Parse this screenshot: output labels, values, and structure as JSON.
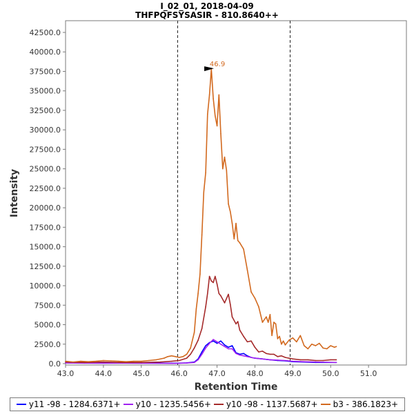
{
  "chart_data": {
    "type": "line",
    "title": "I_02_01, 2018-04-09",
    "subtitle": "THFPQFSYSASIR - 810.8640++",
    "xlabel": "Retention Time",
    "ylabel": "Intensity",
    "xlim": [
      43.0,
      52.0
    ],
    "ylim": [
      0,
      43500
    ],
    "xticks": [
      "43.0",
      "44.0",
      "45.0",
      "46.0",
      "47.0",
      "48.0",
      "49.0",
      "50.0",
      "51.0"
    ],
    "xtick_values": [
      43,
      44,
      45,
      46,
      47,
      48,
      49,
      50,
      51
    ],
    "yticks": [
      "0.0",
      "2500.0",
      "5000.0",
      "7500.0",
      "10000.0",
      "12500.0",
      "15000.0",
      "17500.0",
      "20000.0",
      "22500.0",
      "25000.0",
      "27500.0",
      "30000.0",
      "32500.0",
      "35000.0",
      "37500.0",
      "40000.0",
      "42500.0"
    ],
    "ytick_values": [
      0,
      2500,
      5000,
      7500,
      10000,
      12500,
      15000,
      17500,
      20000,
      22500,
      25000,
      27500,
      30000,
      32500,
      35000,
      37500,
      40000,
      42500
    ],
    "boundaries": [
      45.96,
      48.93
    ],
    "peak_annotation": {
      "label": "46.9",
      "x": 46.9,
      "y": 37800,
      "color": "#d2691e"
    },
    "legend_position": "bottom",
    "series": [
      {
        "name": "y11 -98 - 1284.6371+",
        "color": "#0000ff",
        "x": [
          43.0,
          43.5,
          44.0,
          44.5,
          45.0,
          45.5,
          45.8,
          46.0,
          46.2,
          46.4,
          46.5,
          46.6,
          46.7,
          46.8,
          46.9,
          47.0,
          47.1,
          47.2,
          47.3,
          47.4,
          47.5,
          47.6,
          47.7,
          47.8,
          47.9,
          48.0,
          48.2,
          48.4,
          48.6,
          48.8,
          49.0,
          49.3,
          49.6,
          49.9,
          50.15
        ],
        "y": [
          150,
          100,
          80,
          90,
          70,
          60,
          50,
          60,
          100,
          200,
          600,
          1500,
          2300,
          2700,
          2900,
          2600,
          2900,
          2400,
          2100,
          2300,
          1400,
          1200,
          1300,
          1000,
          800,
          700,
          600,
          500,
          400,
          350,
          250,
          200,
          150,
          150,
          150
        ]
      },
      {
        "name": "y10 - 1235.5456+",
        "color": "#a020f0",
        "x": [
          43.0,
          43.5,
          44.0,
          44.5,
          45.0,
          45.5,
          45.8,
          46.0,
          46.2,
          46.4,
          46.5,
          46.6,
          46.7,
          46.8,
          46.9,
          47.0,
          47.1,
          47.2,
          47.3,
          47.4,
          47.5,
          47.6,
          47.7,
          47.8,
          47.9,
          48.0,
          48.2,
          48.4,
          48.6,
          48.8,
          49.0,
          49.3,
          49.6,
          49.9,
          50.15
        ],
        "y": [
          80,
          60,
          50,
          60,
          40,
          40,
          30,
          40,
          80,
          150,
          500,
          1200,
          2000,
          2600,
          3100,
          2800,
          2500,
          2200,
          1900,
          1900,
          1300,
          1100,
          1000,
          900,
          800,
          700,
          600,
          500,
          450,
          400,
          300,
          250,
          200,
          180,
          150
        ]
      },
      {
        "name": "y10 -98 - 1137.5687+",
        "color": "#a52a2a",
        "x": [
          43.0,
          43.5,
          44.0,
          44.5,
          45.0,
          45.5,
          45.8,
          46.0,
          46.2,
          46.3,
          46.4,
          46.5,
          46.6,
          46.7,
          46.75,
          46.8,
          46.85,
          46.9,
          46.95,
          47.0,
          47.05,
          47.1,
          47.2,
          47.3,
          47.35,
          47.4,
          47.5,
          47.55,
          47.6,
          47.7,
          47.8,
          47.9,
          48.0,
          48.1,
          48.2,
          48.3,
          48.4,
          48.5,
          48.6,
          48.7,
          48.8,
          48.9,
          49.0,
          49.2,
          49.4,
          49.6,
          49.8,
          50.0,
          50.15
        ],
        "y": [
          200,
          150,
          200,
          150,
          150,
          200,
          300,
          400,
          700,
          1200,
          2000,
          3000,
          4500,
          7300,
          9000,
          11200,
          10600,
          10400,
          11200,
          10200,
          9000,
          8700,
          7800,
          8900,
          7600,
          6000,
          5100,
          5400,
          4300,
          3500,
          2800,
          2900,
          2100,
          1500,
          1600,
          1300,
          1200,
          1200,
          900,
          1000,
          800,
          700,
          600,
          500,
          500,
          400,
          400,
          500,
          500
        ]
      },
      {
        "name": "b3 - 386.1823+",
        "color": "#d2691e",
        "x": [
          43.0,
          43.2,
          43.4,
          43.6,
          43.8,
          44.0,
          44.2,
          44.4,
          44.6,
          44.8,
          45.0,
          45.2,
          45.4,
          45.6,
          45.7,
          45.8,
          45.9,
          46.0,
          46.1,
          46.2,
          46.3,
          46.4,
          46.45,
          46.5,
          46.55,
          46.6,
          46.65,
          46.7,
          46.75,
          46.8,
          46.85,
          46.9,
          46.95,
          47.0,
          47.05,
          47.1,
          47.15,
          47.2,
          47.25,
          47.3,
          47.35,
          47.4,
          47.45,
          47.5,
          47.55,
          47.6,
          47.7,
          47.8,
          47.9,
          48.0,
          48.1,
          48.2,
          48.3,
          48.35,
          48.4,
          48.45,
          48.5,
          48.55,
          48.6,
          48.65,
          48.7,
          48.75,
          48.8,
          48.9,
          49.0,
          49.1,
          49.2,
          49.3,
          49.4,
          49.5,
          49.6,
          49.7,
          49.8,
          49.9,
          50.0,
          50.1,
          50.15
        ],
        "y": [
          300,
          200,
          300,
          250,
          300,
          400,
          350,
          300,
          250,
          300,
          300,
          400,
          500,
          700,
          900,
          1000,
          900,
          800,
          900,
          1200,
          2000,
          4000,
          7000,
          9000,
          11500,
          16500,
          22000,
          24500,
          32000,
          34500,
          37800,
          34000,
          31800,
          30500,
          34500,
          29500,
          25000,
          26500,
          24800,
          20500,
          19500,
          18000,
          16000,
          18000,
          15800,
          15500,
          14700,
          12000,
          9200,
          8400,
          7300,
          5300,
          6000,
          5300,
          6300,
          3600,
          5300,
          5100,
          3200,
          3500,
          2500,
          2900,
          2400,
          3000,
          3300,
          2800,
          3600,
          2300,
          1900,
          2500,
          2300,
          2600,
          2000,
          1900,
          2300,
          2100,
          2200
        ]
      }
    ]
  }
}
